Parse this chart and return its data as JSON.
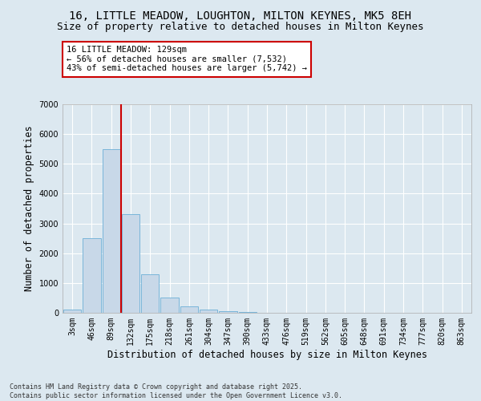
{
  "title_line1": "16, LITTLE MEADOW, LOUGHTON, MILTON KEYNES, MK5 8EH",
  "title_line2": "Size of property relative to detached houses in Milton Keynes",
  "xlabel": "Distribution of detached houses by size in Milton Keynes",
  "ylabel": "Number of detached properties",
  "categories": [
    "3sqm",
    "46sqm",
    "89sqm",
    "132sqm",
    "175sqm",
    "218sqm",
    "261sqm",
    "304sqm",
    "347sqm",
    "390sqm",
    "433sqm",
    "476sqm",
    "519sqm",
    "562sqm",
    "605sqm",
    "648sqm",
    "691sqm",
    "734sqm",
    "777sqm",
    "820sqm",
    "863sqm"
  ],
  "values": [
    100,
    2500,
    5500,
    3300,
    1300,
    500,
    220,
    100,
    50,
    30,
    10,
    5,
    2,
    1,
    0,
    0,
    0,
    0,
    0,
    0,
    0
  ],
  "bar_color": "#c8d8e8",
  "bar_edge_color": "#6baed6",
  "vline_x_idx": 2.5,
  "vline_color": "#cc0000",
  "annotation_text": "16 LITTLE MEADOW: 129sqm\n← 56% of detached houses are smaller (7,532)\n43% of semi-detached houses are larger (5,742) →",
  "annotation_box_color": "#cc0000",
  "ylim": [
    0,
    7000
  ],
  "yticks": [
    0,
    1000,
    2000,
    3000,
    4000,
    5000,
    6000,
    7000
  ],
  "footnote": "Contains HM Land Registry data © Crown copyright and database right 2025.\nContains public sector information licensed under the Open Government Licence v3.0.",
  "bg_color": "#dce8f0",
  "plot_bg_color": "#dce8f0",
  "grid_color": "#ffffff",
  "title_fontsize": 10,
  "subtitle_fontsize": 9,
  "axis_label_fontsize": 8.5,
  "tick_fontsize": 7,
  "annot_fontsize": 7.5,
  "footnote_fontsize": 6
}
